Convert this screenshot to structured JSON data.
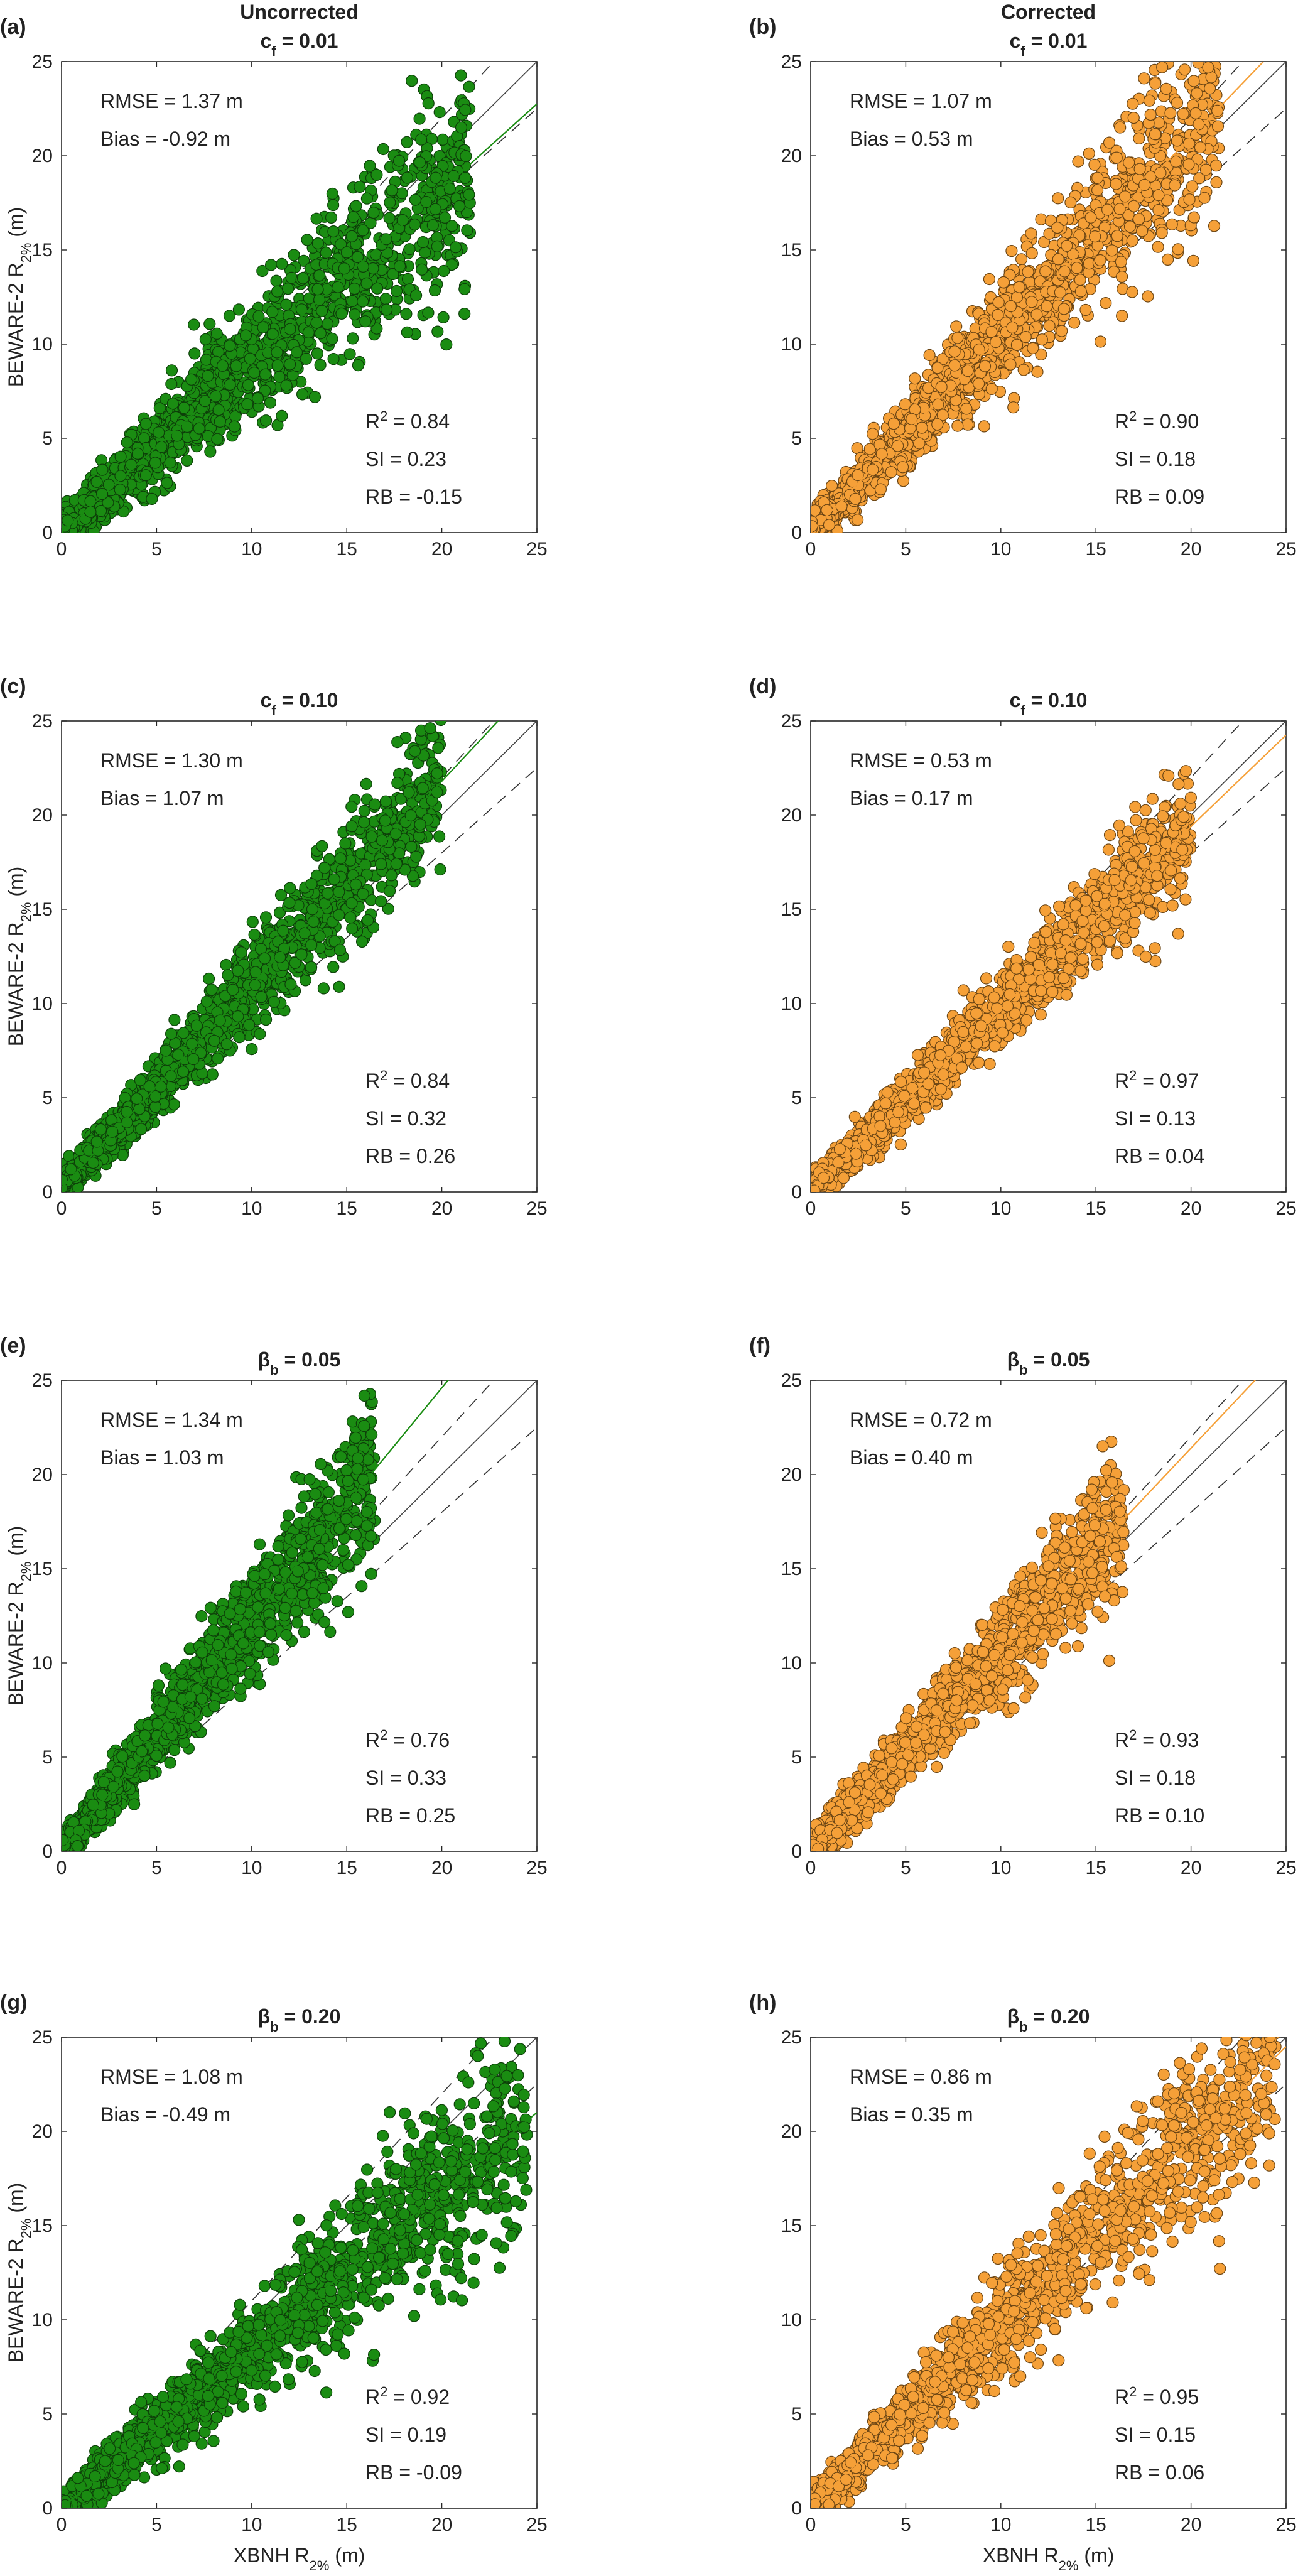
{
  "figure": {
    "columns": [
      {
        "header": "Uncorrected",
        "color": "#1a8c12",
        "edge": "#0d3f09"
      },
      {
        "header": "Corrected",
        "color": "#f5a038",
        "edge": "#6b4514"
      }
    ],
    "xlabel": "XBNH R2% (m)",
    "ylabel": "BEWARE-2 R2% (m)",
    "axis_label_main": {
      "x": "XBNH R",
      "y": "BEWARE-2 R"
    },
    "axis_label_sub": "2%",
    "axis_label_unit": "(m)"
  },
  "chart_data": [
    {
      "panel": "(a)",
      "column": 0,
      "type": "scatter",
      "title": "cf = 0.01",
      "title_main": "c",
      "title_sub": "f",
      "title_rest": " = 0.01",
      "xlim": [
        0,
        25
      ],
      "ylim": [
        0,
        25
      ],
      "xticks": [
        "0",
        "5",
        "10",
        "15",
        "20",
        "25"
      ],
      "yticks": [
        "0",
        "5",
        "10",
        "15",
        "20",
        "25"
      ],
      "rmse": "RMSE = 1.37 m",
      "bias": "Bias = -0.92 m",
      "r2": "0.84",
      "r2_prefix": "R",
      "r2_sup": "2",
      "r2_eq": " = ",
      "si": "SI = 0.23",
      "rb": "RB = -0.15",
      "fit_slope": 0.91,
      "fit_intercept": 0.0,
      "spread": 0.13,
      "xmax": 21.5,
      "seed": 11
    },
    {
      "panel": "(b)",
      "column": 1,
      "type": "scatter",
      "title": "cf = 0.01",
      "title_main": "c",
      "title_sub": "f",
      "title_rest": " = 0.01",
      "xlim": [
        0,
        25
      ],
      "ylim": [
        0,
        25
      ],
      "xticks": [
        "0",
        "5",
        "10",
        "15",
        "20",
        "25"
      ],
      "yticks": [
        "0",
        "5",
        "10",
        "15",
        "20",
        "25"
      ],
      "rmse": "RMSE = 1.07 m",
      "bias": "Bias = 0.53 m",
      "r2": "0.90",
      "r2_prefix": "R",
      "r2_sup": "2",
      "r2_eq": " = ",
      "si": "SI = 0.18",
      "rb": "RB = 0.09",
      "fit_slope": 1.05,
      "fit_intercept": 0.0,
      "spread": 0.11,
      "xmax": 21.5,
      "seed": 23
    },
    {
      "panel": "(c)",
      "column": 0,
      "type": "scatter",
      "title": "cf = 0.10",
      "title_main": "c",
      "title_sub": "f",
      "title_rest": " = 0.10",
      "xlim": [
        0,
        25
      ],
      "ylim": [
        0,
        25
      ],
      "xticks": [
        "0",
        "5",
        "10",
        "15",
        "20",
        "25"
      ],
      "yticks": [
        "0",
        "5",
        "10",
        "15",
        "20",
        "25"
      ],
      "rmse": "RMSE = 1.30 m",
      "bias": "Bias = 1.07 m",
      "r2": "0.84",
      "r2_prefix": "R",
      "r2_sup": "2",
      "r2_eq": " = ",
      "si": "SI = 0.32",
      "rb": "RB = 0.26",
      "fit_slope": 1.08,
      "fit_intercept": 0.2,
      "spread": 0.08,
      "xmax": 20.0,
      "seed": 37
    },
    {
      "panel": "(d)",
      "column": 1,
      "type": "scatter",
      "title": "cf = 0.10",
      "title_main": "c",
      "title_sub": "f",
      "title_rest": " = 0.10",
      "xlim": [
        0,
        25
      ],
      "ylim": [
        0,
        25
      ],
      "xticks": [
        "0",
        "5",
        "10",
        "15",
        "20",
        "25"
      ],
      "yticks": [
        "0",
        "5",
        "10",
        "15",
        "20",
        "25"
      ],
      "rmse": "RMSE = 0.53 m",
      "bias": "Bias = 0.17 m",
      "r2": "0.97",
      "r2_prefix": "R",
      "r2_sup": "2",
      "r2_eq": " = ",
      "si": "SI = 0.13",
      "rb": "RB = 0.04",
      "fit_slope": 0.97,
      "fit_intercept": 0.0,
      "spread": 0.06,
      "xmax": 20.0,
      "seed": 41
    },
    {
      "panel": "(e)",
      "column": 0,
      "type": "scatter",
      "title": "βb = 0.05",
      "title_main": "β",
      "title_sub": "b",
      "title_rest": " = 0.05",
      "xlim": [
        0,
        25
      ],
      "ylim": [
        0,
        25
      ],
      "xticks": [
        "0",
        "5",
        "10",
        "15",
        "20",
        "25"
      ],
      "yticks": [
        "0",
        "5",
        "10",
        "15",
        "20",
        "25"
      ],
      "rmse": "RMSE = 1.34 m",
      "bias": "Bias = 1.03 m",
      "r2": "0.76",
      "r2_prefix": "R",
      "r2_sup": "2",
      "r2_eq": " = ",
      "si": "SI = 0.33",
      "rb": "RB = 0.25",
      "fit_slope": 1.23,
      "fit_intercept": 0.0,
      "spread": 0.11,
      "xmax": 16.5,
      "seed": 53
    },
    {
      "panel": "(f)",
      "column": 1,
      "type": "scatter",
      "title": "βb = 0.05",
      "title_main": "β",
      "title_sub": "b",
      "title_rest": " = 0.05",
      "xlim": [
        0,
        25
      ],
      "ylim": [
        0,
        25
      ],
      "xticks": [
        "0",
        "5",
        "10",
        "15",
        "20",
        "25"
      ],
      "yticks": [
        "0",
        "5",
        "10",
        "15",
        "20",
        "25"
      ],
      "rmse": "RMSE = 0.72 m",
      "bias": "Bias = 0.40 m",
      "r2": "0.93",
      "r2_prefix": "R",
      "r2_sup": "2",
      "r2_eq": " = ",
      "si": "SI = 0.18",
      "rb": "RB = 0.10",
      "fit_slope": 1.07,
      "fit_intercept": 0.0,
      "spread": 0.09,
      "xmax": 16.5,
      "seed": 67
    },
    {
      "panel": "(g)",
      "column": 0,
      "type": "scatter",
      "title": "βb = 0.20",
      "title_main": "β",
      "title_sub": "b",
      "title_rest": " = 0.20",
      "xlim": [
        0,
        25
      ],
      "ylim": [
        0,
        25
      ],
      "xticks": [
        "0",
        "5",
        "10",
        "15",
        "20",
        "25"
      ],
      "yticks": [
        "0",
        "5",
        "10",
        "15",
        "20",
        "25"
      ],
      "rmse": "RMSE = 1.08 m",
      "bias": "Bias = -0.49 m",
      "r2": "0.92",
      "r2_prefix": "R",
      "r2_sup": "2",
      "r2_eq": " = ",
      "si": "SI = 0.19",
      "rb": "RB = -0.09",
      "fit_slope": 0.84,
      "fit_intercept": 0.0,
      "spread": 0.1,
      "xmax": 24.5,
      "seed": 71
    },
    {
      "panel": "(h)",
      "column": 1,
      "type": "scatter",
      "title": "βb = 0.20",
      "title_main": "β",
      "title_sub": "b",
      "title_rest": " = 0.20",
      "xlim": [
        0,
        25
      ],
      "ylim": [
        0,
        25
      ],
      "xticks": [
        "0",
        "5",
        "10",
        "15",
        "20",
        "25"
      ],
      "yticks": [
        "0",
        "5",
        "10",
        "15",
        "20",
        "25"
      ],
      "rmse": "RMSE = 0.86 m",
      "bias": "Bias = 0.35 m",
      "r2": "0.95",
      "r2_prefix": "R",
      "r2_sup": "2",
      "r2_eq": " = ",
      "si": "SI = 0.15",
      "rb": "RB = 0.06",
      "fit_slope": 0.98,
      "fit_intercept": 0.0,
      "spread": 0.1,
      "xmax": 24.5,
      "seed": 83
    }
  ]
}
